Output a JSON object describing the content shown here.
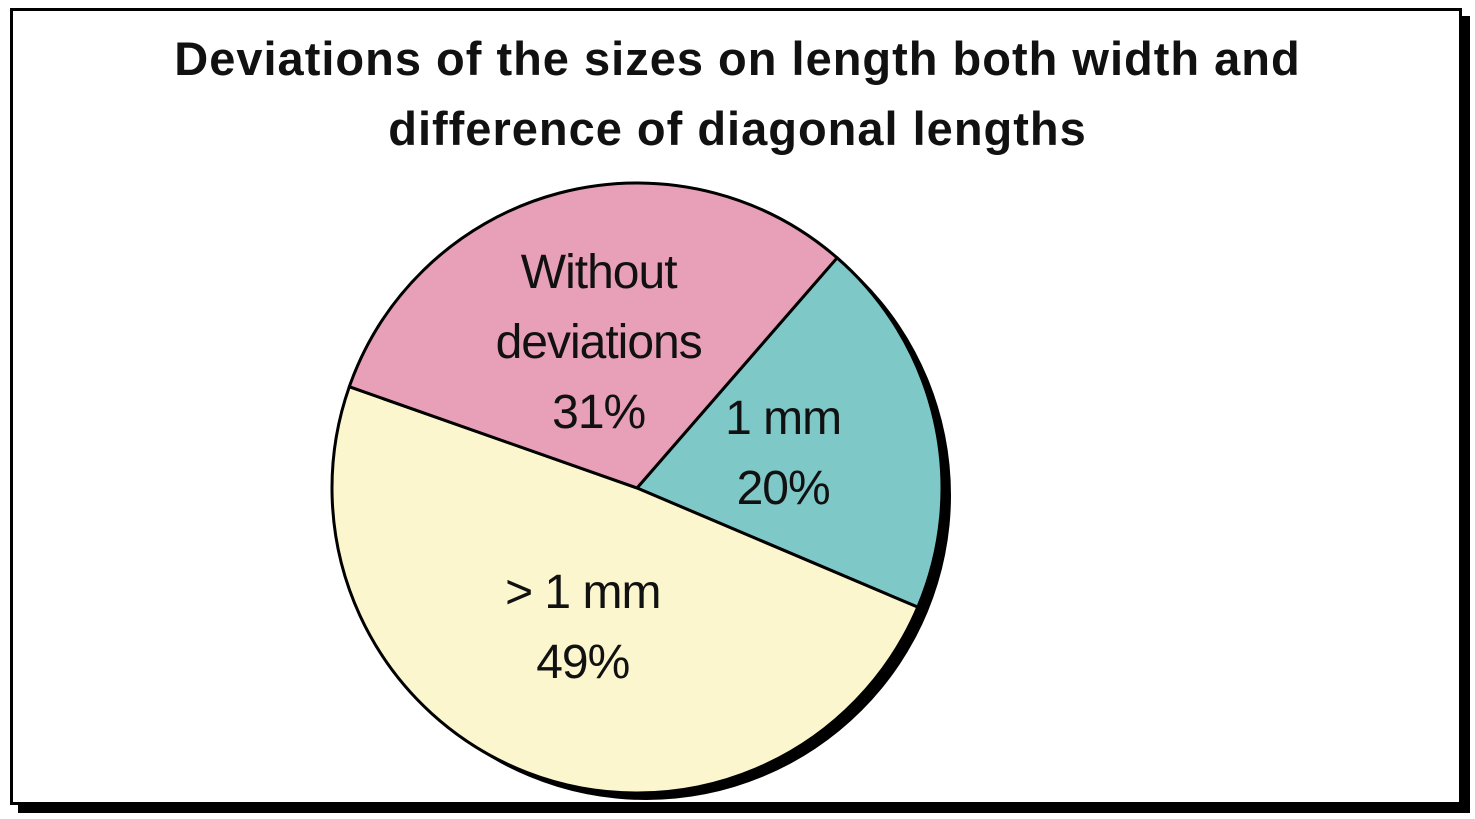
{
  "chart_data": {
    "type": "pie",
    "title": "Deviations of the sizes on length both width and difference of diagonal lengths",
    "categories": [
      "1 mm",
      "> 1 mm",
      "Without deviations"
    ],
    "values": [
      20,
      49,
      31
    ],
    "value_labels": [
      "20%",
      "49%",
      "31%"
    ],
    "colors": [
      "#7fc8c8",
      "#fbf6cd",
      "#e8a0b9"
    ]
  }
}
